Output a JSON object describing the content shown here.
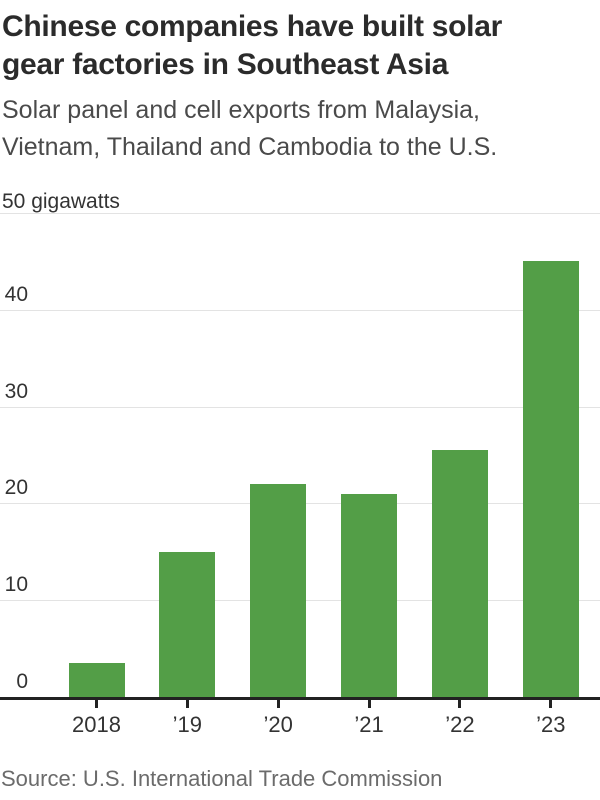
{
  "header": {
    "title_line1": "Chinese companies have built solar",
    "title_line2": "gear factories in Southeast Asia",
    "subtitle_line1": "Solar panel and cell exports from Malaysia,",
    "subtitle_line2": "Vietnam, Thailand and Cambodia to the U.S."
  },
  "chart_data": {
    "type": "bar",
    "title": "Chinese companies have built solar gear factories in Southeast Asia",
    "subtitle": "Solar panel and cell exports from Malaysia, Vietnam, Thailand and Cambodia to the U.S.",
    "unit_label": "50 gigawatts",
    "categories": [
      "2018",
      "’19",
      "’20",
      "’21",
      "’22",
      "’23"
    ],
    "values": [
      3.5,
      15,
      22,
      21,
      25.5,
      45
    ],
    "xlabel": "",
    "ylabel": "gigawatts",
    "ylim": [
      0,
      50
    ],
    "yticks": [
      0,
      10,
      20,
      30,
      40,
      50
    ],
    "grid": true,
    "legend": "none",
    "bar_color": "#539e47",
    "grid_color": "#e3e3e3",
    "axis_color": "#222222"
  },
  "footer": {
    "source": "Source: U.S. International Trade Commission"
  }
}
